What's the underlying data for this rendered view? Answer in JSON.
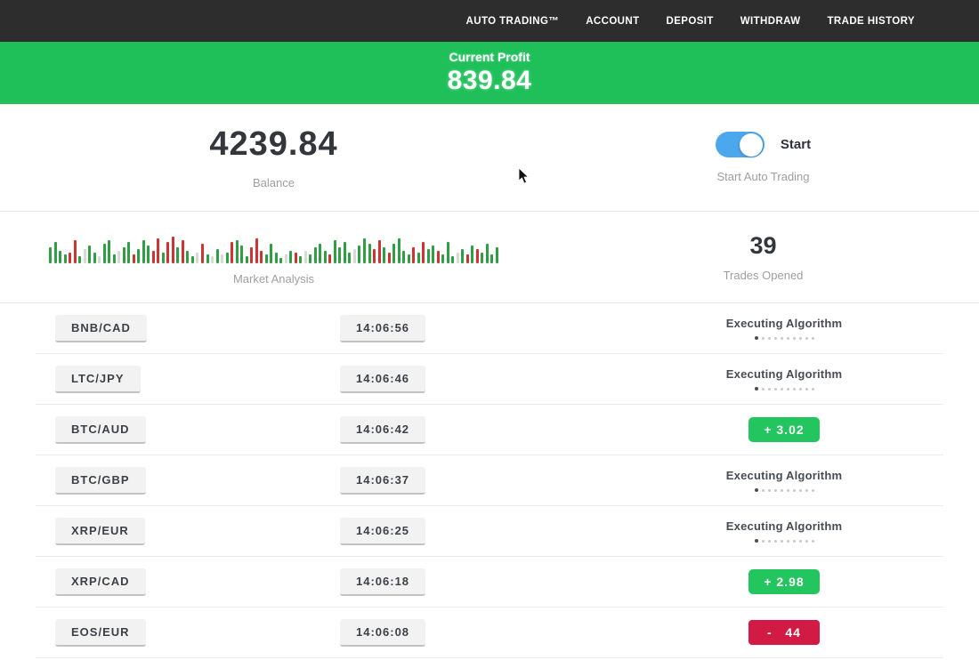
{
  "nav": {
    "items": [
      {
        "label": "AUTO TRADING™"
      },
      {
        "label": "ACCOUNT"
      },
      {
        "label": "DEPOSIT"
      },
      {
        "label": "WITHDRAW"
      },
      {
        "label": "TRADE HISTORY"
      }
    ]
  },
  "profit_banner": {
    "label": "Current Profit",
    "value": "839.84"
  },
  "stats": {
    "balance": {
      "value": "4239.84",
      "label": "Balance"
    },
    "auto_trading": {
      "toggle_label": "Start",
      "label": "Start Auto Trading",
      "toggle_on": true
    },
    "market_analysis": {
      "label": "Market Analysis"
    },
    "trades_opened": {
      "value": "39",
      "label": "Trades Opened"
    }
  },
  "chart_data": {
    "type": "bar",
    "title": "Market Analysis",
    "description": "decorative candlestick-style activity bars, bottom-aligned, encoded as colorLetter+heightPx",
    "color_map": {
      "g": "#2f9e44",
      "r": "#cf3434",
      "p": "#d6d9d4"
    },
    "bars": [
      "g18",
      "g24",
      "g14",
      "g10",
      "r12",
      "r26",
      "g8",
      "p16",
      "g20",
      "g12",
      "p8",
      "g22",
      "g26",
      "g10",
      "p14",
      "g18",
      "g24",
      "r10",
      "g16",
      "g26",
      "g20",
      "r14",
      "r28",
      "g12",
      "r24",
      "r30",
      "g18",
      "r26",
      "g14",
      "g8",
      "p12",
      "r22",
      "g10",
      "p8",
      "g16",
      "p10",
      "g12",
      "r24",
      "g26",
      "g20",
      "g8",
      "r18",
      "r28",
      "r14",
      "g10",
      "g22",
      "g12",
      "g6",
      "p10",
      "g14",
      "r12",
      "g8",
      "p14",
      "g10",
      "g18",
      "g22",
      "g14",
      "r10",
      "g26",
      "g18",
      "g24",
      "g12",
      "p16",
      "g20",
      "g28",
      "g22",
      "r16",
      "r26",
      "g18",
      "r12",
      "g22",
      "g28",
      "g14",
      "g10",
      "r18",
      "g12",
      "r24",
      "g16",
      "g20",
      "r14",
      "g10",
      "g24",
      "g8",
      "p12",
      "g16",
      "r10",
      "g20",
      "r16",
      "g12",
      "g22",
      "g10",
      "g18"
    ]
  },
  "loader": {
    "dot_count": 10,
    "active_index": 0
  },
  "trades": [
    {
      "pair": "BNB/CAD",
      "time": "14:06:56",
      "status": "executing",
      "status_label": "Executing Algorithm"
    },
    {
      "pair": "LTC/JPY",
      "time": "14:06:46",
      "status": "executing",
      "status_label": "Executing Algorithm"
    },
    {
      "pair": "BTC/AUD",
      "time": "14:06:42",
      "status": "profit",
      "result": "+ 3.02"
    },
    {
      "pair": "BTC/GBP",
      "time": "14:06:37",
      "status": "executing",
      "status_label": "Executing Algorithm"
    },
    {
      "pair": "XRP/EUR",
      "time": "14:06:25",
      "status": "executing",
      "status_label": "Executing Algorithm"
    },
    {
      "pair": "XRP/CAD",
      "time": "14:06:18",
      "status": "profit",
      "result": "+ 2.98"
    },
    {
      "pair": "EOS/EUR",
      "time": "14:06:08",
      "status": "loss",
      "result": "-   44"
    }
  ],
  "colors": {
    "nav_bg": "#2d2d2d",
    "banner_green": "#1fc05a",
    "toggle_blue": "#4ba8ec",
    "badge_green": "#22c55e",
    "badge_red": "#d11b44",
    "candle_green": "#2f9e44",
    "candle_red": "#cf3434"
  }
}
